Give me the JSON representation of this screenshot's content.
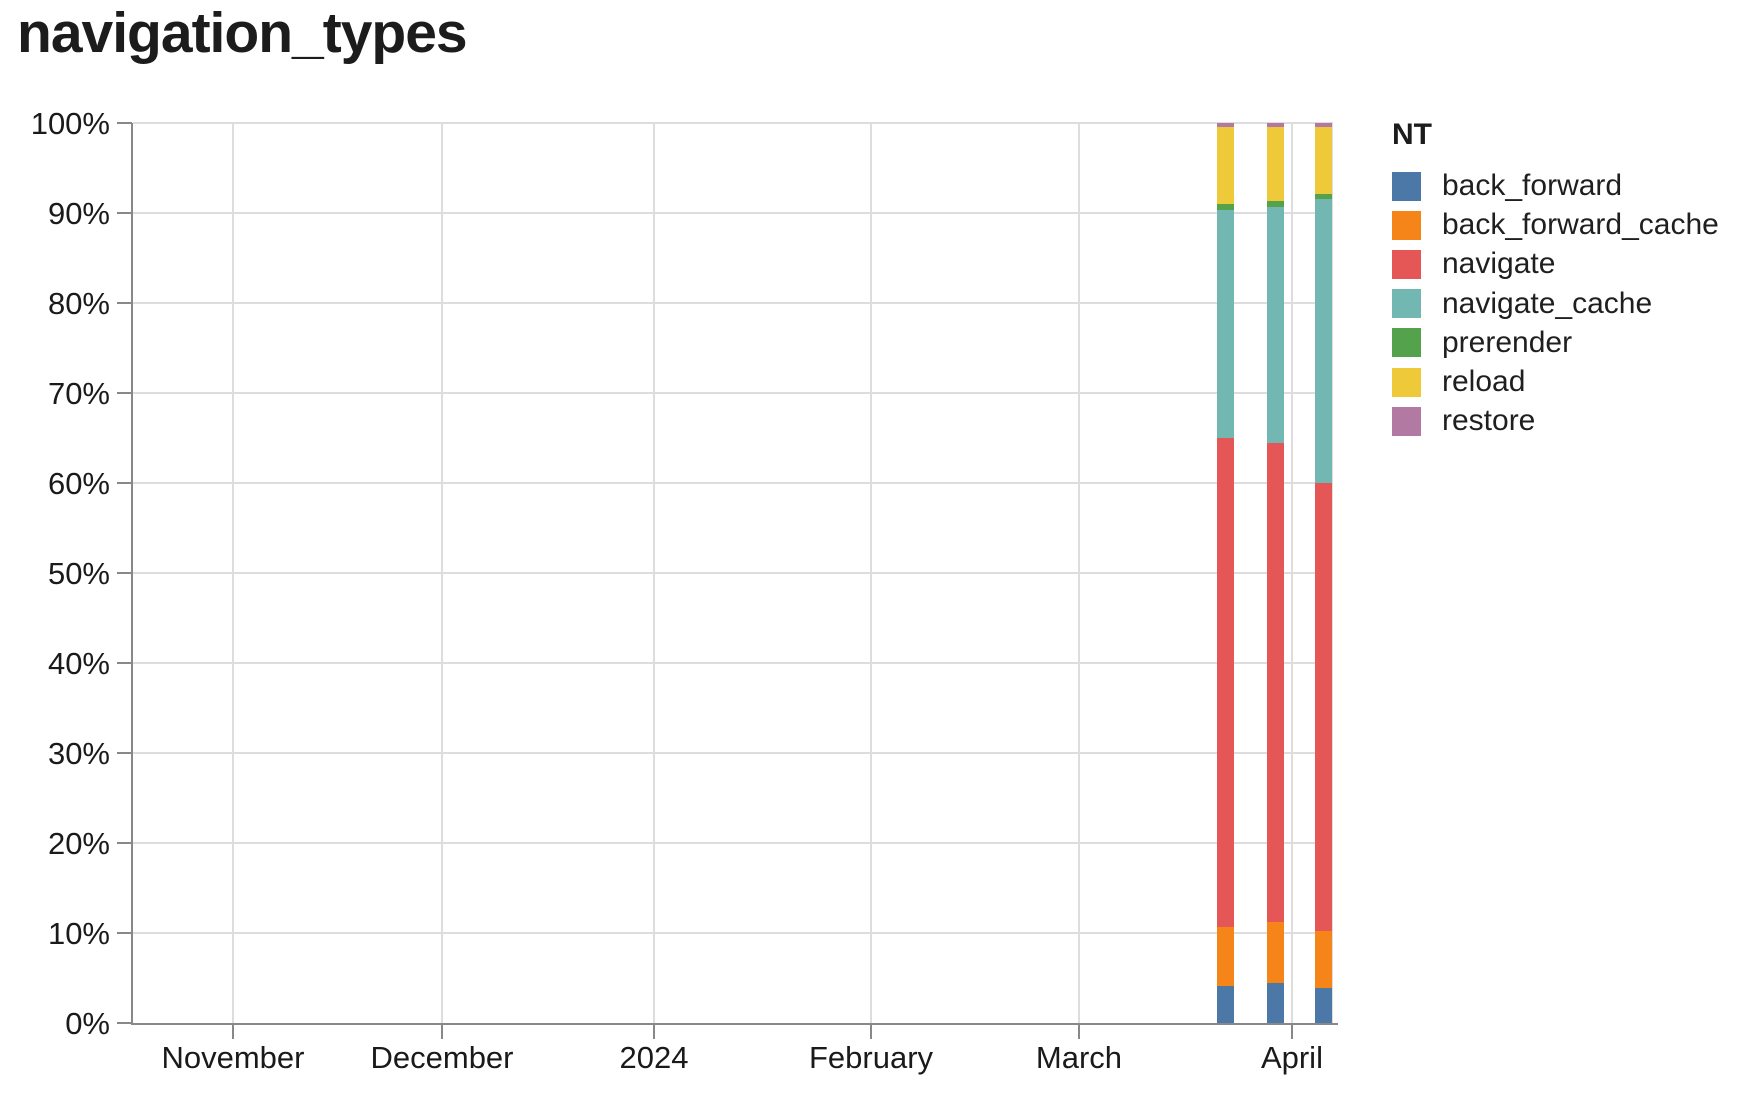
{
  "title": "navigation_types",
  "chart_data": {
    "type": "bar",
    "variant": "100-percent-stacked-vertical",
    "title": "navigation_types",
    "grid": true,
    "legend_position": "right",
    "legend_title": "NT",
    "x_axis": {
      "kind": "time",
      "ticks": [
        {
          "label": "November",
          "pos": 0.0833
        },
        {
          "label": "December",
          "pos": 0.2575
        },
        {
          "label": "2024",
          "pos": 0.4342
        },
        {
          "label": "February",
          "pos": 0.615
        },
        {
          "label": "March",
          "pos": 0.7883
        },
        {
          "label": "April",
          "pos": 0.9658
        }
      ]
    },
    "y_axis": {
      "unit": "%",
      "min": 0,
      "max": 100,
      "step": 10,
      "tick_labels": [
        "0%",
        "10%",
        "20%",
        "30%",
        "40%",
        "50%",
        "60%",
        "70%",
        "80%",
        "90%",
        "100%"
      ]
    },
    "bar_positions": [
      0.9108,
      0.9517,
      0.9917
    ],
    "series": [
      {
        "name": "back_forward",
        "color": "#4c78a8",
        "values": [
          4.1,
          4.4,
          3.9
        ]
      },
      {
        "name": "back_forward_cache",
        "color": "#f58518",
        "values": [
          6.6,
          6.8,
          6.3
        ]
      },
      {
        "name": "navigate",
        "color": "#e45756",
        "values": [
          54.3,
          53.2,
          49.8
        ]
      },
      {
        "name": "navigate_cache",
        "color": "#72b7b2",
        "values": [
          25.3,
          26.3,
          31.6
        ]
      },
      {
        "name": "prerender",
        "color": "#54a24b",
        "values": [
          0.7,
          0.6,
          0.5
        ]
      },
      {
        "name": "reload",
        "color": "#eeca3b",
        "values": [
          8.6,
          8.3,
          7.5
        ]
      },
      {
        "name": "restore",
        "color": "#b279a2",
        "values": [
          0.4,
          0.4,
          0.4
        ]
      }
    ]
  }
}
